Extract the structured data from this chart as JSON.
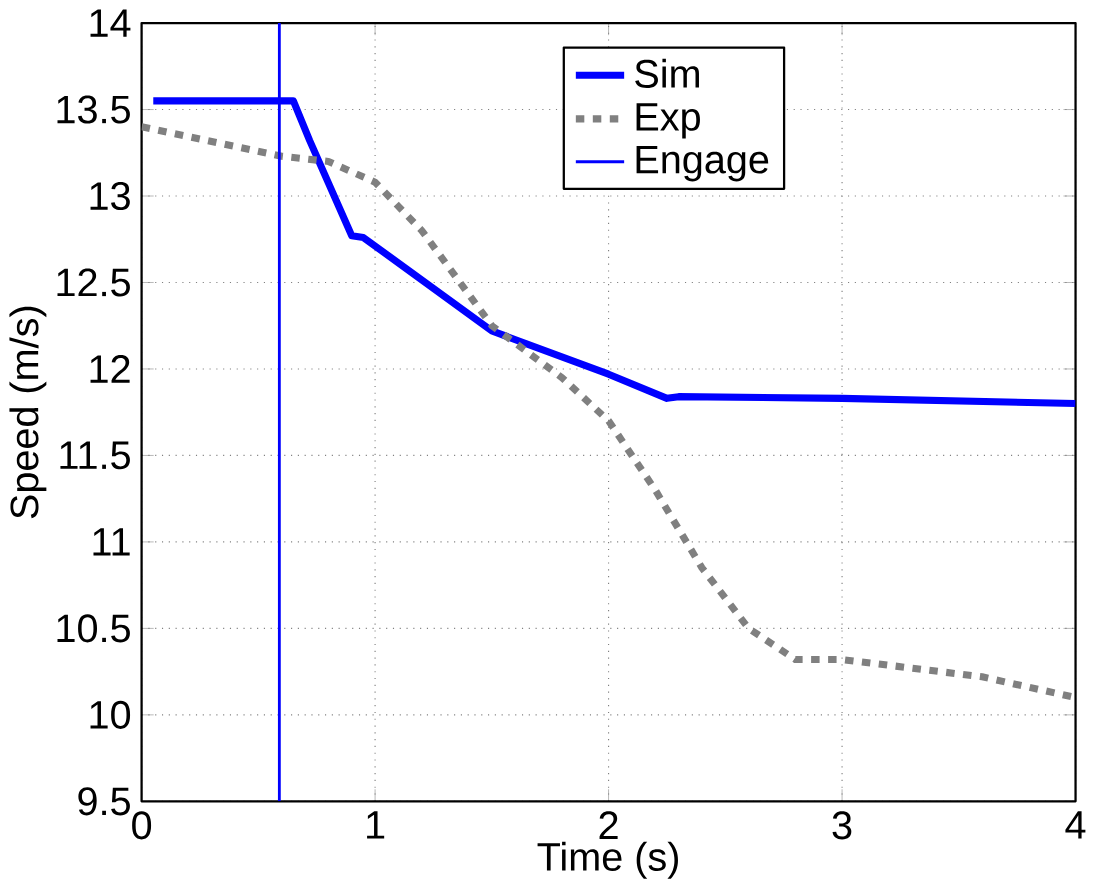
{
  "chart_data": {
    "type": "line",
    "xlabel": "Time (s)",
    "ylabel": "Speed (m/s)",
    "xlim": [
      0,
      4
    ],
    "ylim": [
      9.5,
      14
    ],
    "xticks": [
      0,
      1,
      2,
      3,
      4
    ],
    "yticks": [
      9.5,
      10,
      10.5,
      11,
      11.5,
      12,
      12.5,
      13,
      13.5,
      14
    ],
    "grid": true,
    "legend": "top",
    "series": [
      {
        "name": "Sim",
        "color": "#0000ff",
        "line_style": "solid",
        "x": [
          0.05,
          0.65,
          0.72,
          0.9,
          0.95,
          1.5,
          2.0,
          2.25,
          2.3,
          3.0,
          4.0
        ],
        "values": [
          13.55,
          13.55,
          13.32,
          12.77,
          12.76,
          12.22,
          11.97,
          11.83,
          11.84,
          11.83,
          11.8
        ]
      },
      {
        "name": "Exp",
        "color": "#808080",
        "line_style": "dashed",
        "x": [
          0,
          0.6,
          0.8,
          1.0,
          1.2,
          1.5,
          1.8,
          2.0,
          2.2,
          2.4,
          2.6,
          2.8,
          3.0,
          3.3,
          3.6,
          4.0
        ],
        "values": [
          13.4,
          13.23,
          13.2,
          13.08,
          12.8,
          12.25,
          11.95,
          11.7,
          11.3,
          10.85,
          10.5,
          10.32,
          10.32,
          10.27,
          10.22,
          10.1
        ]
      },
      {
        "name": "Engage",
        "color": "#0000ff",
        "line_style": "solid",
        "x": [
          0.59,
          0.59
        ],
        "values": [
          9.5,
          14
        ]
      }
    ]
  }
}
